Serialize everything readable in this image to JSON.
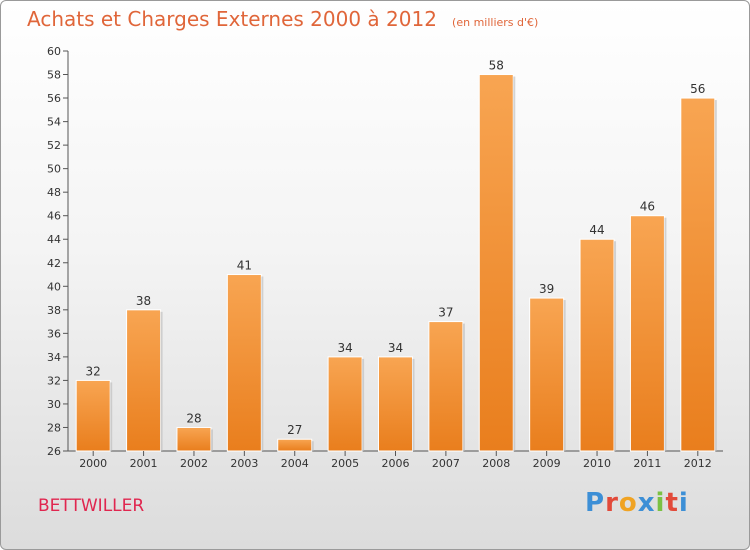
{
  "header": {
    "title": "Achats et Charges Externes 2000 à 2012",
    "subtitle": "(en milliers d'€)"
  },
  "footer": {
    "commune": "BETTWILLER",
    "brand": "Proxiti"
  },
  "colors": {
    "bar": "#f0913a",
    "title": "#e0663a",
    "commune": "#e0264f",
    "brand": [
      "#3d8fd6",
      "#e24a3a",
      "#f0a323",
      "#3d8fd6",
      "#7bc143",
      "#e24a3a",
      "#3d8fd6"
    ]
  },
  "chart_data": {
    "type": "bar",
    "title": "Achats et Charges Externes 2000 à 2012",
    "subtitle": "(en milliers d'€)",
    "categories": [
      "2000",
      "2001",
      "2002",
      "2003",
      "2004",
      "2005",
      "2006",
      "2007",
      "2008",
      "2009",
      "2010",
      "2011",
      "2012"
    ],
    "values": [
      32,
      38,
      28,
      41,
      27,
      34,
      34,
      37,
      58,
      39,
      44,
      46,
      56
    ],
    "ylim": [
      26,
      60
    ],
    "yticks": [
      26,
      28,
      30,
      32,
      34,
      36,
      38,
      40,
      42,
      44,
      46,
      48,
      50,
      52,
      54,
      56,
      58,
      60
    ],
    "grid": false,
    "legend": "none"
  }
}
